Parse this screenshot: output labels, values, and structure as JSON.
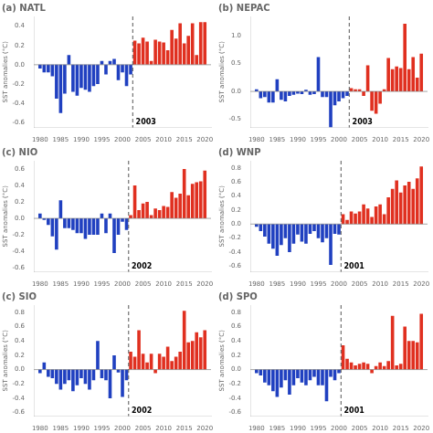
{
  "chart_data": [
    {
      "type": "bar",
      "title": "(a) NATL",
      "ylabel": "SST anomalies (°C)",
      "x": [
        1980,
        1981,
        1982,
        1983,
        1984,
        1985,
        1986,
        1987,
        1988,
        1989,
        1990,
        1991,
        1992,
        1993,
        1994,
        1995,
        1996,
        1997,
        1998,
        1999,
        2000,
        2001,
        2002,
        2003,
        2004,
        2005,
        2006,
        2007,
        2008,
        2009,
        2010,
        2011,
        2012,
        2013,
        2014,
        2015,
        2016,
        2017,
        2018,
        2019,
        2020
      ],
      "values": [
        -0.04,
        -0.08,
        -0.08,
        -0.12,
        -0.35,
        -0.5,
        -0.3,
        0.1,
        -0.28,
        -0.32,
        -0.24,
        -0.26,
        -0.28,
        -0.22,
        -0.2,
        0.04,
        -0.1,
        0.04,
        0.06,
        -0.16,
        -0.08,
        -0.22,
        -0.1,
        0.25,
        0.22,
        0.28,
        0.24,
        0.04,
        0.26,
        0.24,
        0.23,
        0.15,
        0.36,
        0.27,
        0.43,
        0.22,
        0.3,
        0.43,
        0.1,
        0.44,
        0.44
      ],
      "colors": [
        "#2040c0",
        "#2040c0",
        "#2040c0",
        "#2040c0",
        "#2040c0",
        "#2040c0",
        "#2040c0",
        "#2040c0",
        "#2040c0",
        "#2040c0",
        "#2040c0",
        "#2040c0",
        "#2040c0",
        "#2040c0",
        "#2040c0",
        "#2040c0",
        "#2040c0",
        "#2040c0",
        "#2040c0",
        "#2040c0",
        "#2040c0",
        "#2040c0",
        "#2040c0",
        "#e03020",
        "#e03020",
        "#e03020",
        "#e03020",
        "#e03020",
        "#e03020",
        "#e03020",
        "#e03020",
        "#e03020",
        "#e03020",
        "#e03020",
        "#e03020",
        "#e03020",
        "#e03020",
        "#e03020",
        "#e03020",
        "#e03020",
        "#e03020"
      ],
      "xlim": [
        1978.5,
        2021.5
      ],
      "xticks": [
        1980,
        1985,
        1990,
        1995,
        2000,
        2005,
        2010,
        2015,
        2020
      ],
      "ylim": [
        -0.65,
        0.5
      ],
      "yticks": [
        -0.6,
        -0.4,
        -0.2,
        {
          "value": 0,
          "label": "0.0"
        },
        0.2,
        0.4
      ],
      "grid": false,
      "annotations": [
        {
          "type": "hline",
          "y": 0,
          "color": "gray"
        },
        {
          "type": "vline",
          "x": 2002.5,
          "line_style": "dashed",
          "color": "#555555"
        },
        {
          "text": "2003",
          "x": 2003,
          "color": "black"
        }
      ]
    },
    {
      "type": "bar",
      "title": "(b) NEPAC",
      "ylabel": "SST anomalies (°C)",
      "x": [
        1980,
        1981,
        1982,
        1983,
        1984,
        1985,
        1986,
        1987,
        1988,
        1989,
        1990,
        1991,
        1992,
        1993,
        1994,
        1995,
        1996,
        1997,
        1998,
        1999,
        2000,
        2001,
        2002,
        2003,
        2004,
        2005,
        2006,
        2007,
        2008,
        2009,
        2010,
        2011,
        2012,
        2013,
        2014,
        2015,
        2016,
        2017,
        2018,
        2019,
        2020
      ],
      "values": [
        0.04,
        -0.12,
        -0.1,
        -0.2,
        -0.2,
        0.22,
        -0.15,
        -0.18,
        -0.08,
        -0.06,
        -0.04,
        -0.05,
        0.03,
        -0.06,
        -0.05,
        0.62,
        -0.1,
        -0.1,
        -0.65,
        -0.25,
        -0.18,
        -0.12,
        -0.08,
        0.06,
        0.04,
        0.04,
        -0.08,
        0.47,
        -0.35,
        -0.4,
        -0.22,
        0.04,
        0.6,
        0.4,
        0.45,
        0.42,
        1.22,
        0.4,
        0.62,
        0.25,
        0.68
      ],
      "colors": [
        "#2040c0",
        "#2040c0",
        "#2040c0",
        "#2040c0",
        "#2040c0",
        "#2040c0",
        "#2040c0",
        "#2040c0",
        "#2040c0",
        "#2040c0",
        "#2040c0",
        "#2040c0",
        "#2040c0",
        "#2040c0",
        "#2040c0",
        "#2040c0",
        "#2040c0",
        "#2040c0",
        "#2040c0",
        "#2040c0",
        "#2040c0",
        "#2040c0",
        "#2040c0",
        "#e03020",
        "#e03020",
        "#e03020",
        "#e03020",
        "#e03020",
        "#e03020",
        "#e03020",
        "#e03020",
        "#e03020",
        "#e03020",
        "#e03020",
        "#e03020",
        "#e03020",
        "#e03020",
        "#e03020",
        "#e03020",
        "#e03020",
        "#e03020"
      ],
      "xlim": [
        1978.5,
        2021.5
      ],
      "xticks": [
        1980,
        1985,
        1990,
        1995,
        2000,
        2005,
        2010,
        2015,
        2020
      ],
      "ylim": [
        -0.65,
        1.35
      ],
      "yticks": [
        -0.5,
        {
          "value": 0,
          "label": "0.0"
        },
        0.5,
        {
          "value": 1,
          "label": "1.0"
        }
      ],
      "grid": false,
      "annotations": [
        {
          "type": "hline",
          "y": 0,
          "color": "gray"
        },
        {
          "type": "vline",
          "x": 2002.5,
          "line_style": "dashed",
          "color": "#555555"
        },
        {
          "text": "2003",
          "x": 2003,
          "color": "black"
        }
      ]
    },
    {
      "type": "bar",
      "title": "(c) NIO",
      "ylabel": "SST anomalies (°C)",
      "x": [
        1980,
        1981,
        1982,
        1983,
        1984,
        1985,
        1986,
        1987,
        1988,
        1989,
        1990,
        1991,
        1992,
        1993,
        1994,
        1995,
        1996,
        1997,
        1998,
        1999,
        2000,
        2001,
        2002,
        2003,
        2004,
        2005,
        2006,
        2007,
        2008,
        2009,
        2010,
        2011,
        2012,
        2013,
        2014,
        2015,
        2016,
        2017,
        2018,
        2019,
        2020
      ],
      "values": [
        0.06,
        -0.02,
        -0.08,
        -0.22,
        -0.38,
        0.22,
        -0.12,
        -0.12,
        -0.14,
        -0.18,
        -0.18,
        -0.25,
        -0.2,
        -0.2,
        -0.2,
        0.06,
        -0.18,
        0.06,
        -0.42,
        -0.2,
        -0.04,
        -0.14,
        0.04,
        0.4,
        0.1,
        0.18,
        0.2,
        0.04,
        0.12,
        0.1,
        0.15,
        0.14,
        0.32,
        0.25,
        0.3,
        0.6,
        0.28,
        0.42,
        0.44,
        0.45,
        0.58
      ],
      "colors": [
        "#2040c0",
        "#2040c0",
        "#2040c0",
        "#2040c0",
        "#2040c0",
        "#2040c0",
        "#2040c0",
        "#2040c0",
        "#2040c0",
        "#2040c0",
        "#2040c0",
        "#2040c0",
        "#2040c0",
        "#2040c0",
        "#2040c0",
        "#2040c0",
        "#2040c0",
        "#2040c0",
        "#2040c0",
        "#2040c0",
        "#2040c0",
        "#2040c0",
        "#e03020",
        "#e03020",
        "#e03020",
        "#e03020",
        "#e03020",
        "#e03020",
        "#e03020",
        "#e03020",
        "#e03020",
        "#e03020",
        "#e03020",
        "#e03020",
        "#e03020",
        "#e03020",
        "#e03020",
        "#e03020",
        "#e03020",
        "#e03020",
        "#e03020"
      ],
      "xlim": [
        1978.5,
        2021.5
      ],
      "xticks": [
        1980,
        1985,
        1990,
        1995,
        2000,
        2005,
        2010,
        2015,
        2020
      ],
      "ylim": [
        -0.65,
        0.7
      ],
      "yticks": [
        -0.6,
        -0.4,
        -0.2,
        {
          "value": 0,
          "label": "0.0"
        },
        0.2,
        0.4,
        0.6
      ],
      "grid": false,
      "annotations": [
        {
          "type": "hline",
          "y": 0,
          "color": "gray"
        },
        {
          "type": "vline",
          "x": 2001.5,
          "line_style": "dashed",
          "color": "#555555"
        },
        {
          "text": "2002",
          "x": 2002,
          "color": "black"
        }
      ]
    },
    {
      "type": "bar",
      "title": "(d) WNP",
      "ylabel": "SST anomalies (°C)",
      "x": [
        1980,
        1981,
        1982,
        1983,
        1984,
        1985,
        1986,
        1987,
        1988,
        1989,
        1990,
        1991,
        1992,
        1993,
        1994,
        1995,
        1996,
        1997,
        1998,
        1999,
        2000,
        2001,
        2002,
        2003,
        2004,
        2005,
        2006,
        2007,
        2008,
        2009,
        2010,
        2011,
        2012,
        2013,
        2014,
        2015,
        2016,
        2017,
        2018,
        2019,
        2020
      ],
      "values": [
        -0.04,
        -0.1,
        -0.18,
        -0.28,
        -0.35,
        -0.45,
        -0.3,
        -0.2,
        -0.4,
        -0.28,
        -0.15,
        -0.25,
        -0.28,
        -0.14,
        -0.1,
        -0.2,
        -0.26,
        -0.2,
        -0.58,
        -0.14,
        -0.15,
        0.14,
        0.06,
        0.18,
        0.15,
        0.18,
        0.28,
        0.22,
        0.1,
        0.25,
        0.28,
        0.14,
        0.38,
        0.5,
        0.62,
        0.45,
        0.55,
        0.6,
        0.5,
        0.65,
        0.82
      ],
      "colors": [
        "#2040c0",
        "#2040c0",
        "#2040c0",
        "#2040c0",
        "#2040c0",
        "#2040c0",
        "#2040c0",
        "#2040c0",
        "#2040c0",
        "#2040c0",
        "#2040c0",
        "#2040c0",
        "#2040c0",
        "#2040c0",
        "#2040c0",
        "#2040c0",
        "#2040c0",
        "#2040c0",
        "#2040c0",
        "#2040c0",
        "#2040c0",
        "#e03020",
        "#e03020",
        "#e03020",
        "#e03020",
        "#e03020",
        "#e03020",
        "#e03020",
        "#e03020",
        "#e03020",
        "#e03020",
        "#e03020",
        "#e03020",
        "#e03020",
        "#e03020",
        "#e03020",
        "#e03020",
        "#e03020",
        "#e03020",
        "#e03020",
        "#e03020"
      ],
      "xlim": [
        1978.5,
        2021.5
      ],
      "xticks": [
        1980,
        1985,
        1990,
        1995,
        2000,
        2005,
        2010,
        2015,
        2020
      ],
      "ylim": [
        -0.68,
        0.9
      ],
      "yticks": [
        -0.6,
        -0.4,
        -0.2,
        {
          "value": 0,
          "label": "0.0"
        },
        0.2,
        0.4,
        0.6,
        0.8
      ],
      "grid": false,
      "annotations": [
        {
          "type": "hline",
          "y": 0,
          "color": "gray"
        },
        {
          "type": "vline",
          "x": 2000.5,
          "line_style": "dashed",
          "color": "#555555"
        },
        {
          "text": "2001",
          "x": 2001,
          "color": "black"
        }
      ]
    },
    {
      "type": "bar",
      "title": "(c) SIO",
      "ylabel": "SST anomalies (°C)",
      "x": [
        1980,
        1981,
        1982,
        1983,
        1984,
        1985,
        1986,
        1987,
        1988,
        1989,
        1990,
        1991,
        1992,
        1993,
        1994,
        1995,
        1996,
        1997,
        1998,
        1999,
        2000,
        2001,
        2002,
        2003,
        2004,
        2005,
        2006,
        2007,
        2008,
        2009,
        2010,
        2011,
        2012,
        2013,
        2014,
        2015,
        2016,
        2017,
        2018,
        2019,
        2020
      ],
      "values": [
        -0.05,
        0.1,
        -0.1,
        -0.12,
        -0.2,
        -0.28,
        -0.2,
        -0.15,
        -0.3,
        -0.22,
        -0.12,
        -0.2,
        -0.28,
        -0.15,
        0.4,
        -0.12,
        -0.15,
        -0.4,
        0.2,
        -0.04,
        -0.38,
        -0.15,
        0.25,
        0.18,
        0.55,
        0.22,
        0.1,
        0.22,
        -0.05,
        0.22,
        0.18,
        0.32,
        0.12,
        0.18,
        0.25,
        0.82,
        0.38,
        0.4,
        0.52,
        0.45,
        0.55
      ],
      "colors": [
        "#2040c0",
        "#2040c0",
        "#2040c0",
        "#2040c0",
        "#2040c0",
        "#2040c0",
        "#2040c0",
        "#2040c0",
        "#2040c0",
        "#2040c0",
        "#2040c0",
        "#2040c0",
        "#2040c0",
        "#2040c0",
        "#2040c0",
        "#2040c0",
        "#2040c0",
        "#2040c0",
        "#2040c0",
        "#2040c0",
        "#2040c0",
        "#2040c0",
        "#e03020",
        "#e03020",
        "#e03020",
        "#e03020",
        "#e03020",
        "#e03020",
        "#e03020",
        "#e03020",
        "#e03020",
        "#e03020",
        "#e03020",
        "#e03020",
        "#e03020",
        "#e03020",
        "#e03020",
        "#e03020",
        "#e03020",
        "#e03020",
        "#e03020"
      ],
      "xlim": [
        1978.5,
        2021.5
      ],
      "xticks": [
        1980,
        1985,
        1990,
        1995,
        2000,
        2005,
        2010,
        2015,
        2020
      ],
      "ylim": [
        -0.65,
        0.9
      ],
      "yticks": [
        -0.6,
        -0.4,
        -0.2,
        {
          "value": 0,
          "label": "0.0"
        },
        0.2,
        0.4,
        0.6,
        0.8
      ],
      "grid": false,
      "annotations": [
        {
          "type": "hline",
          "y": 0,
          "color": "gray"
        },
        {
          "type": "vline",
          "x": 2001.5,
          "line_style": "dashed",
          "color": "#555555"
        },
        {
          "text": "2002",
          "x": 2002,
          "color": "black"
        }
      ]
    },
    {
      "type": "bar",
      "title": "(d) SPO",
      "ylabel": "SST anomalies (°C)",
      "x": [
        1980,
        1981,
        1982,
        1983,
        1984,
        1985,
        1986,
        1987,
        1988,
        1989,
        1990,
        1991,
        1992,
        1993,
        1994,
        1995,
        1996,
        1997,
        1998,
        1999,
        2000,
        2001,
        2002,
        2003,
        2004,
        2005,
        2006,
        2007,
        2008,
        2009,
        2010,
        2011,
        2012,
        2013,
        2014,
        2015,
        2016,
        2017,
        2018,
        2019,
        2020
      ],
      "values": [
        -0.05,
        -0.08,
        -0.18,
        -0.22,
        -0.3,
        -0.38,
        -0.25,
        -0.15,
        -0.35,
        -0.22,
        -0.12,
        -0.18,
        -0.22,
        -0.15,
        -0.1,
        -0.22,
        -0.22,
        -0.44,
        -0.1,
        -0.15,
        -0.05,
        0.34,
        0.15,
        0.1,
        0.06,
        0.08,
        0.1,
        0.08,
        -0.05,
        0.05,
        0.1,
        0.05,
        0.12,
        0.75,
        0.06,
        0.08,
        0.6,
        0.4,
        0.4,
        0.38,
        0.78
      ],
      "colors": [
        "#2040c0",
        "#2040c0",
        "#2040c0",
        "#2040c0",
        "#2040c0",
        "#2040c0",
        "#2040c0",
        "#2040c0",
        "#2040c0",
        "#2040c0",
        "#2040c0",
        "#2040c0",
        "#2040c0",
        "#2040c0",
        "#2040c0",
        "#2040c0",
        "#2040c0",
        "#2040c0",
        "#2040c0",
        "#2040c0",
        "#2040c0",
        "#e03020",
        "#e03020",
        "#e03020",
        "#e03020",
        "#e03020",
        "#e03020",
        "#e03020",
        "#e03020",
        "#e03020",
        "#e03020",
        "#e03020",
        "#e03020",
        "#e03020",
        "#e03020",
        "#e03020",
        "#e03020",
        "#e03020",
        "#e03020",
        "#e03020",
        "#e03020"
      ],
      "xlim": [
        1978.5,
        2021.5
      ],
      "xticks": [
        1980,
        1985,
        1990,
        1995,
        2000,
        2005,
        2010,
        2015,
        2020
      ],
      "ylim": [
        -0.65,
        0.9
      ],
      "yticks": [
        -0.6,
        -0.4,
        -0.2,
        {
          "value": 0,
          "label": "0.0"
        },
        0.2,
        0.4,
        0.6,
        0.8
      ],
      "grid": false,
      "annotations": [
        {
          "type": "hline",
          "y": 0,
          "color": "gray"
        },
        {
          "type": "vline",
          "x": 2000.5,
          "line_style": "dashed",
          "color": "#555555"
        },
        {
          "text": "2001",
          "x": 2001,
          "color": "black"
        }
      ]
    }
  ]
}
